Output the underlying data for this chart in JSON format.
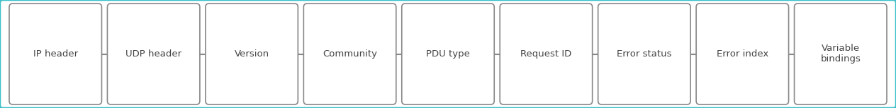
{
  "boxes": [
    {
      "label": "IP header"
    },
    {
      "label": "UDP header"
    },
    {
      "label": "Version"
    },
    {
      "label": "Community"
    },
    {
      "label": "PDU type"
    },
    {
      "label": "Request ID"
    },
    {
      "label": "Error status"
    },
    {
      "label": "Error index"
    },
    {
      "label": "Variable\nbindings"
    }
  ],
  "box_facecolor": "#ffffff",
  "box_edgecolor": "#888888",
  "connector_color": "#888888",
  "text_color": "#444444",
  "background_color": "#ffffff",
  "outer_border_color": "#3bbfc8",
  "font_size": 9.5,
  "fig_width": 12.64,
  "fig_height": 1.53,
  "dpi": 100
}
